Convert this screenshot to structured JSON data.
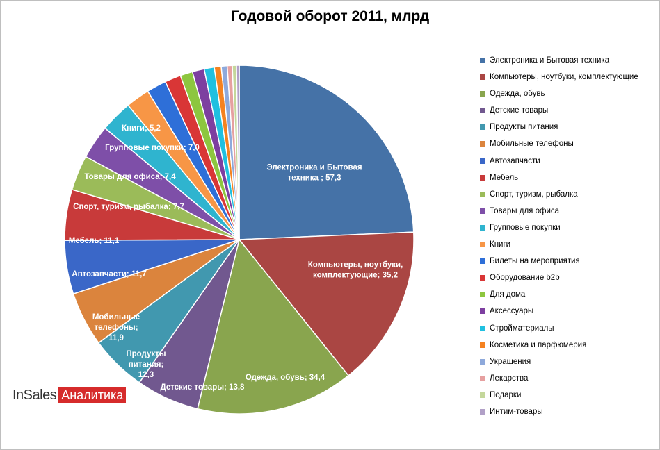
{
  "chart_data": {
    "type": "pie",
    "title": "Годовой оборот 2011, млрд",
    "slices": [
      {
        "name": "Электроника и Бытовая техника",
        "value": 57.3,
        "color": "#4572A7",
        "label": "Электроника  и Бытовая техника ; 57,3"
      },
      {
        "name": "Компьютеры, ноутбуки, комплектующие",
        "value": 35.2,
        "color": "#AA4643",
        "label": "Компьютеры,  ноутбуки, комплектующие;  35,2"
      },
      {
        "name": "Одежда, обувь",
        "value": 34.4,
        "color": "#89A54E",
        "label": "Одежда, обувь;  34,4"
      },
      {
        "name": "Детские товары",
        "value": 13.8,
        "color": "#71588F",
        "label": "Детские товары;  13,8"
      },
      {
        "name": "Продукты питания",
        "value": 12.3,
        "color": "#4198AF",
        "label": "Продукты питания; 12,3"
      },
      {
        "name": "Мобильные телефоны",
        "value": 11.9,
        "color": "#DB843D",
        "label": "Мобильные телефоны; 11,9"
      },
      {
        "name": "Автозапчасти",
        "value": 11.7,
        "color": "#3A67C8",
        "label": "Автозапчасти;  11,7"
      },
      {
        "name": "Мебель",
        "value": 11.1,
        "color": "#C83A3A",
        "label": "Мебель; 11,1"
      },
      {
        "name": "Спорт, туризм, рыбалка",
        "value": 7.7,
        "color": "#9BBB59",
        "label": "Спорт, туризм,  рыбалка;  7,7"
      },
      {
        "name": "Товары для офиса",
        "value": 7.4,
        "color": "#7E4FA8",
        "label": "Товары  для офиса; 7,4"
      },
      {
        "name": "Групповые покупки",
        "value": 7.0,
        "color": "#2FB4CF",
        "label": "Групповые  покупки;  7,0"
      },
      {
        "name": "Книги",
        "value": 5.2,
        "color": "#F79646",
        "label": "Книги;  5,2"
      },
      {
        "name": "Билеты на мероприятия",
        "value": 4.3,
        "color": "#2E6FD8",
        "label": ""
      },
      {
        "name": "Оборудование b2b",
        "value": 3.5,
        "color": "#D93636",
        "label": ""
      },
      {
        "name": "Для дома",
        "value": 2.7,
        "color": "#8DC63F",
        "label": ""
      },
      {
        "name": "Аксессуары",
        "value": 2.6,
        "color": "#7D3FA0",
        "label": ""
      },
      {
        "name": "Стройматериалы",
        "value": 2.2,
        "color": "#20C0E0",
        "label": ""
      },
      {
        "name": "Косметика и парфюмерия",
        "value": 1.5,
        "color": "#F58220",
        "label": ""
      },
      {
        "name": "Украшения",
        "value": 1.3,
        "color": "#8EA9DB",
        "label": ""
      },
      {
        "name": "Лекарства",
        "value": 1.1,
        "color": "#E6A0A0",
        "label": ""
      },
      {
        "name": "Подарки",
        "value": 0.9,
        "color": "#C4D79B",
        "label": ""
      },
      {
        "name": "Интим-товары",
        "value": 0.6,
        "color": "#B1A0C7",
        "label": ""
      }
    ],
    "legend_position": "right"
  },
  "branding": {
    "logo_left": "InSales",
    "logo_right": "Аналитика"
  }
}
